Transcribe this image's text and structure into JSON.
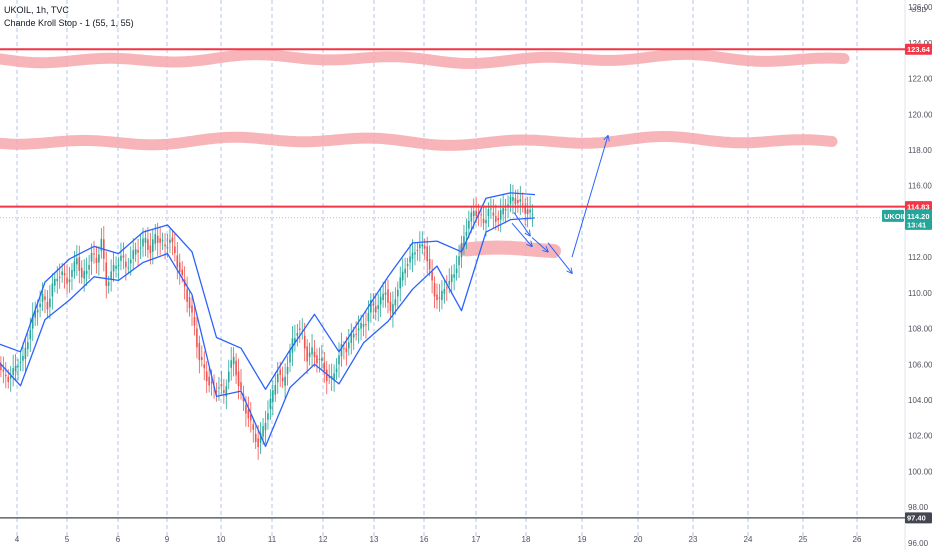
{
  "header": {
    "symbol_line": "UKOIL, 1h, TVC",
    "indicator_line": "Chande Kroll Stop - 1 (55, 1, 55)"
  },
  "chart_data": {
    "type": "line",
    "instrument": "UKOIL",
    "interval": "1h",
    "source": "TVC",
    "currency_label": "USD",
    "x_axis": {
      "tick_labels": [
        "4",
        "5",
        "6",
        "9",
        "10",
        "11",
        "12",
        "13",
        "16",
        "17",
        "18",
        "19",
        "20",
        "23",
        "24",
        "25",
        "26"
      ],
      "grid": "dashed-vertical"
    },
    "y_axis": {
      "range": [
        95.6,
        126.4
      ],
      "tick_values": [
        96.0,
        98.0,
        100.0,
        102.0,
        104.0,
        106.0,
        108.0,
        110.0,
        112.0,
        114.0,
        116.0,
        118.0,
        120.0,
        122.0,
        124.0,
        126.0
      ],
      "tick_labels": [
        "96.00",
        "98.00",
        "100.00",
        "102.00",
        "104.00",
        "106.00",
        "108.00",
        "110.00",
        "112.00",
        "114.00",
        "116.00",
        "118.00",
        "120.00",
        "122.00",
        "124.00",
        "126.00"
      ]
    },
    "price_series": {
      "index": [
        0,
        2,
        4,
        6,
        8,
        10,
        12,
        14,
        16,
        18,
        20,
        22,
        24,
        26,
        28,
        30,
        32,
        34,
        36,
        38,
        40,
        42,
        44,
        46,
        48,
        50,
        52,
        54,
        56,
        58,
        60,
        62,
        64,
        66,
        68,
        70,
        72,
        74,
        76,
        78,
        80,
        82,
        84,
        86,
        88,
        90,
        92,
        94,
        96,
        98,
        100,
        102,
        104,
        106,
        108,
        110,
        112,
        114,
        116,
        118,
        120,
        122,
        124,
        126,
        128,
        130,
        132,
        134,
        136,
        138,
        140,
        142,
        144,
        146,
        148,
        150,
        152,
        154,
        156,
        158,
        160,
        162,
        164,
        166,
        168,
        170,
        172,
        174,
        176,
        178,
        180,
        182,
        184,
        186,
        188,
        190,
        192,
        194,
        196,
        198,
        200,
        202,
        204,
        206,
        208,
        210,
        212,
        214,
        216,
        218,
        220
      ],
      "close": [
        106.8,
        106.0,
        105.4,
        105.2,
        105.6,
        106.1,
        106.3,
        107.4,
        108.6,
        109.2,
        109.8,
        109.2,
        110.4,
        110.9,
        111.1,
        110.6,
        111.2,
        112.0,
        110.8,
        111.3,
        112.2,
        111.7,
        113.0,
        110.4,
        111.2,
        111.5,
        112.1,
        111.4,
        111.9,
        112.4,
        112.6,
        113.0,
        112.3,
        113.2,
        112.9,
        112.5,
        113.1,
        112.1,
        111.3,
        110.2,
        109.3,
        108.0,
        106.4,
        105.6,
        105.0,
        104.5,
        104.9,
        104.2,
        105.8,
        106.2,
        105.0,
        103.7,
        103.2,
        102.1,
        101.6,
        102.3,
        103.5,
        104.3,
        105.7,
        104.8,
        106.1,
        107.2,
        108.0,
        107.6,
        106.4,
        106.7,
        106.3,
        106.1,
        105.3,
        105.1,
        106.0,
        106.9,
        106.9,
        107.5,
        107.9,
        108.1,
        108.4,
        109.4,
        109.1,
        109.6,
        110.2,
        108.8,
        109.8,
        110.7,
        111.5,
        111.9,
        112.4,
        112.6,
        112.6,
        111.2,
        109.9,
        109.6,
        110.3,
        110.6,
        111.1,
        112.0,
        113.2,
        114.0,
        114.6,
        114.4,
        113.9,
        114.7,
        114.3,
        114.1,
        114.7,
        115.0,
        115.3,
        115.1,
        114.9,
        114.5,
        114.3
      ]
    },
    "chande_kroll_stop": {
      "short_stop_index": [
        0,
        10,
        20,
        30,
        40,
        50,
        60,
        70,
        80,
        90,
        100,
        110,
        120,
        130,
        140,
        150,
        160,
        170,
        180,
        190,
        200,
        210,
        220
      ],
      "short_stop": [
        107.2,
        106.7,
        110.6,
        111.9,
        112.6,
        112.2,
        113.4,
        113.8,
        112.3,
        107.5,
        106.9,
        104.6,
        106.8,
        108.8,
        106.7,
        108.8,
        110.9,
        112.8,
        112.9,
        112.3,
        115.3,
        115.6,
        115.5
      ],
      "long_stop_index": [
        0,
        10,
        20,
        30,
        40,
        50,
        60,
        70,
        80,
        90,
        100,
        110,
        120,
        130,
        140,
        150,
        160,
        170,
        180,
        190,
        200,
        210,
        220
      ],
      "long_stop": [
        106.3,
        104.8,
        108.5,
        109.6,
        110.9,
        110.7,
        111.7,
        112.2,
        109.9,
        104.2,
        104.5,
        101.4,
        104.7,
        106.0,
        104.9,
        107.2,
        108.4,
        110.2,
        111.5,
        109.0,
        113.4,
        114.1,
        114.2
      ]
    },
    "horizontal_lines": [
      {
        "price": 123.64,
        "label": "123.64",
        "color": "#f23645"
      },
      {
        "price": 114.83,
        "label": "114.83",
        "color": "#f23645"
      },
      {
        "price": 97.4,
        "label": "97.40",
        "color": "#434651"
      }
    ],
    "current_price": {
      "symbol": "UKOIL",
      "price_label": "114.20",
      "countdown": "13:41",
      "color": "#26a69a"
    },
    "projection_arrows": {
      "points": [
        [
          114.5,
          113.2
        ],
        [
          113.9,
          112.6
        ],
        [
          113.1,
          112.3
        ],
        [
          112.8,
          111.1
        ],
        [
          112.0,
          118.8
        ]
      ],
      "color": "#2962ff"
    },
    "highlight_zones": [
      {
        "price": 123.1,
        "color": "#f7a8ad"
      },
      {
        "price": 118.5,
        "color": "#f7a8ad"
      },
      {
        "price": 112.5,
        "color": "#f7a8ad"
      }
    ],
    "colors": {
      "up_candle": "#26a69a",
      "down_candle": "#ef5350",
      "stop_line": "#2962ff",
      "grid": "#7b9bd6"
    }
  }
}
